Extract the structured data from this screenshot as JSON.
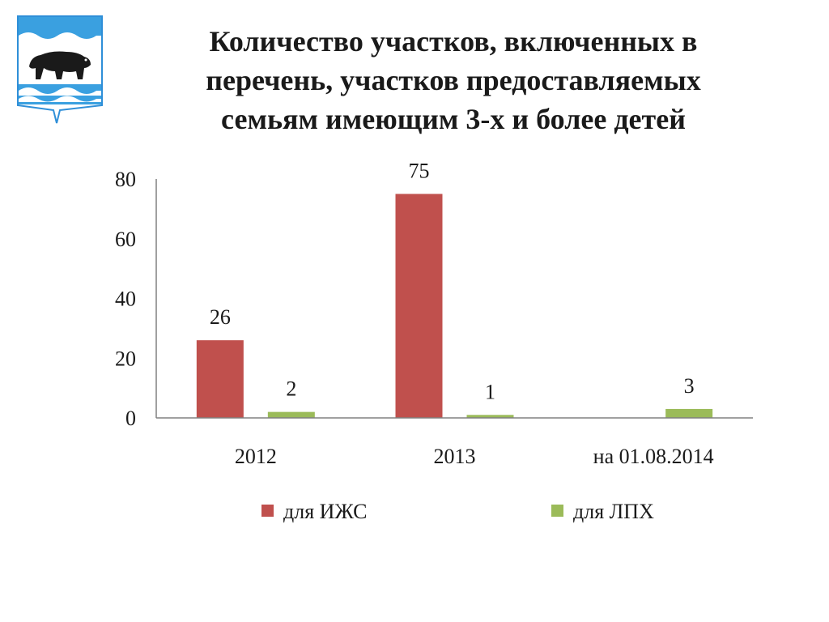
{
  "title_lines": [
    "Количество участков, включенных в",
    "перечень, участков предоставляемых",
    "семьям имеющим 3-х и более детей"
  ],
  "colors": {
    "series_izhs": "#c0504d",
    "series_lph": "#9bbb59",
    "axis": "#808080",
    "emblem_blue": "#3aa0e0",
    "emblem_bear": "#1a1a1a"
  },
  "icons": {
    "emblem": "coat-of-arms-bear-icon"
  },
  "chart_data": {
    "type": "bar",
    "title": "Количество участков, включенных в перечень, участков предоставляемых семьям имеющим 3-х и более детей",
    "categories": [
      "2012",
      "2013",
      "на 01.08.2014"
    ],
    "series": [
      {
        "name": "для ИЖС",
        "values": [
          26,
          75,
          null
        ],
        "labels": [
          "26",
          "75",
          ""
        ]
      },
      {
        "name": "для ЛПХ",
        "values": [
          2,
          1,
          3
        ],
        "labels": [
          "2",
          "1",
          "3"
        ]
      }
    ],
    "ylim": [
      0,
      80
    ],
    "yticks": [
      "0",
      "20",
      "40",
      "60",
      "80"
    ],
    "xlabel": "",
    "ylabel": "",
    "grid": false,
    "legend_position": "bottom"
  }
}
